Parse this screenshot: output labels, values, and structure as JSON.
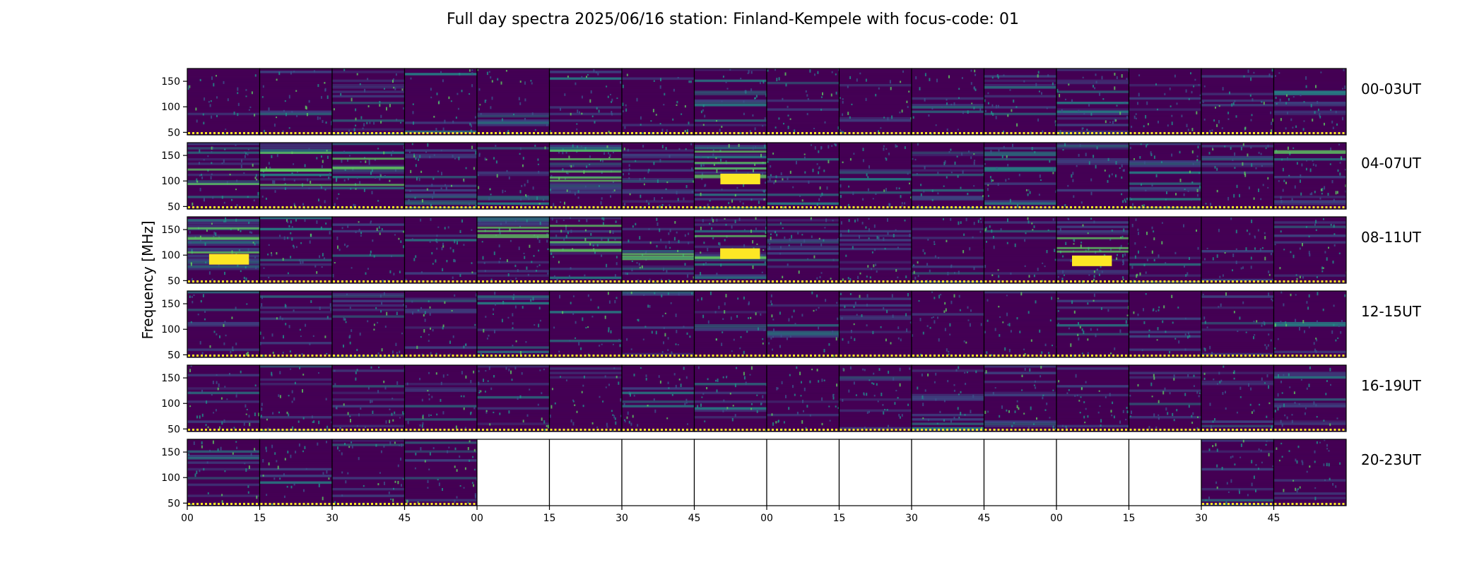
{
  "chart_data": {
    "type": "heatmap",
    "title": "Full day spectra 2025/06/16 station: Finland-Kempele with focus-code: 01",
    "ylabel": "Frequency [MHz]",
    "xlabel": "",
    "y_ticks": [
      50,
      100,
      150
    ],
    "ylim": [
      45,
      175
    ],
    "x_tick_labels": [
      "00",
      "15",
      "30",
      "45",
      "00",
      "15",
      "30",
      "45",
      "00",
      "15",
      "30",
      "45",
      "00",
      "15",
      "30",
      "45"
    ],
    "panels_per_row": 16,
    "panel_minutes": 15,
    "colormap": [
      "#440154",
      "#3b528b",
      "#21918c",
      "#5ec962",
      "#fde725"
    ],
    "missing_data_color": "#ffffff",
    "rows": [
      {
        "label": "00-03UT",
        "missing_panels": [],
        "activity": [
          0.3,
          0.35,
          0.35,
          0.25,
          0.25,
          0.3,
          0.3,
          0.3,
          0.25,
          0.3,
          0.3,
          0.35,
          0.45,
          0.35,
          0.4,
          0.45
        ]
      },
      {
        "label": "04-07UT",
        "missing_panels": [],
        "activity": [
          0.6,
          0.55,
          0.55,
          0.5,
          0.45,
          0.65,
          0.5,
          0.7,
          0.5,
          0.45,
          0.35,
          0.35,
          0.4,
          0.5,
          0.45,
          0.65
        ]
      },
      {
        "label": "08-11UT",
        "missing_panels": [],
        "activity": [
          0.7,
          0.5,
          0.4,
          0.4,
          0.55,
          0.6,
          0.6,
          0.7,
          0.45,
          0.5,
          0.35,
          0.35,
          0.8,
          0.3,
          0.3,
          0.3
        ]
      },
      {
        "label": "12-15UT",
        "missing_panels": [],
        "activity": [
          0.25,
          0.3,
          0.25,
          0.3,
          0.25,
          0.25,
          0.3,
          0.3,
          0.3,
          0.3,
          0.35,
          0.3,
          0.3,
          0.3,
          0.3,
          0.3
        ]
      },
      {
        "label": "16-19UT",
        "missing_panels": [],
        "activity": [
          0.4,
          0.35,
          0.35,
          0.35,
          0.35,
          0.35,
          0.35,
          0.4,
          0.45,
          0.45,
          0.4,
          0.4,
          0.35,
          0.35,
          0.35,
          0.35
        ]
      },
      {
        "label": "20-23UT",
        "missing_panels": [
          4,
          5,
          6,
          7,
          8,
          9,
          10,
          11,
          12,
          13
        ],
        "activity": [
          0.3,
          0.3,
          0.3,
          0.35,
          0,
          0,
          0,
          0,
          0,
          0,
          0,
          0,
          0,
          0,
          0.4,
          0.35
        ]
      }
    ]
  }
}
